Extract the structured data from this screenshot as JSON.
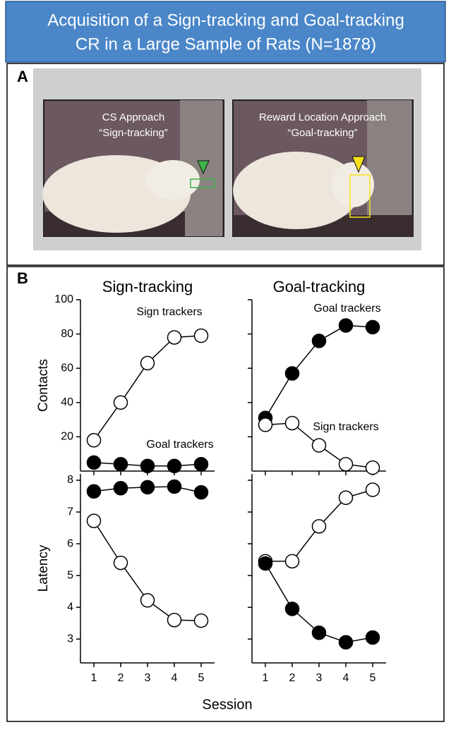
{
  "title_lines": [
    "Acquisition of a Sign-tracking and Goal-tracking",
    "CR in a Large Sample of Rats (N=1878)"
  ],
  "panel_a": {
    "label": "A",
    "photos": [
      {
        "caption_lines": [
          "CS Approach",
          "“Sign-tracking”"
        ],
        "marker_color": "#3cb44b"
      },
      {
        "caption_lines": [
          "Reward Location Approach",
          "“Goal-tracking”"
        ],
        "marker_color": "#f5e11e"
      }
    ]
  },
  "panel_b": {
    "label": "B",
    "xlabel": "Session"
  },
  "chart_data": [
    {
      "type": "line",
      "title": "Sign-tracking",
      "ylabel": "Contacts",
      "x": [
        1,
        2,
        3,
        4,
        5
      ],
      "xlim": [
        0.5,
        5.5
      ],
      "xticks": [
        1,
        2,
        3,
        4,
        5
      ],
      "show_xtick_labels": false,
      "ylim": [
        0,
        100
      ],
      "yticks": [
        20,
        40,
        60,
        80,
        100
      ],
      "show_ytick_labels": true,
      "series": [
        {
          "name": "Sign trackers",
          "color": "#ffffff",
          "values": [
            18,
            40,
            63,
            78,
            79
          ]
        },
        {
          "name": "Goal trackers",
          "color": "#000000",
          "values": [
            5,
            4,
            3,
            3,
            4
          ]
        }
      ]
    },
    {
      "type": "line",
      "title": "Goal-tracking",
      "x": [
        1,
        2,
        3,
        4,
        5
      ],
      "xlim": [
        0.5,
        5.5
      ],
      "xticks": [
        1,
        2,
        3,
        4,
        5
      ],
      "show_xtick_labels": false,
      "ylim": [
        0,
        100
      ],
      "yticks": [
        20,
        40,
        60,
        80,
        100
      ],
      "show_ytick_labels": false,
      "series": [
        {
          "name": "Goal trackers",
          "color": "#000000",
          "values": [
            31,
            57,
            76,
            85,
            84
          ]
        },
        {
          "name": "Sign trackers",
          "color": "#ffffff",
          "values": [
            27,
            28,
            15,
            4,
            2
          ]
        }
      ]
    },
    {
      "type": "line",
      "ylabel": "Latency",
      "x": [
        1,
        2,
        3,
        4,
        5
      ],
      "xlim": [
        0.5,
        5.5
      ],
      "xticks": [
        1,
        2,
        3,
        4,
        5
      ],
      "show_xtick_labels": true,
      "ylim": [
        2.25,
        8.2
      ],
      "yticks": [
        3,
        4,
        5,
        6,
        7,
        8
      ],
      "show_ytick_labels": true,
      "series": [
        {
          "color": "#000000",
          "values": [
            7.65,
            7.75,
            7.78,
            7.8,
            7.62
          ]
        },
        {
          "color": "#ffffff",
          "values": [
            6.72,
            5.4,
            4.22,
            3.6,
            3.58
          ]
        }
      ]
    },
    {
      "type": "line",
      "x": [
        1,
        2,
        3,
        4,
        5
      ],
      "xlim": [
        0.5,
        5.5
      ],
      "xticks": [
        1,
        2,
        3,
        4,
        5
      ],
      "show_xtick_labels": true,
      "ylim": [
        2.25,
        8.2
      ],
      "yticks": [
        3,
        4,
        5,
        6,
        7,
        8
      ],
      "show_ytick_labels": false,
      "series": [
        {
          "color": "#ffffff",
          "values": [
            5.45,
            5.45,
            6.55,
            7.45,
            7.7
          ]
        },
        {
          "color": "#000000",
          "values": [
            5.38,
            3.95,
            3.2,
            2.9,
            3.05
          ]
        }
      ]
    }
  ]
}
